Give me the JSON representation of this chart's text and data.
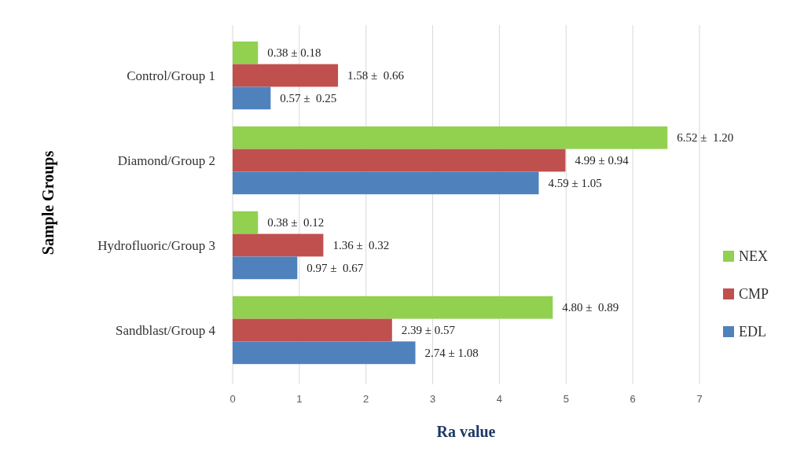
{
  "chart_data": {
    "type": "bar",
    "orientation": "horizontal",
    "xlabel": "Ra value",
    "ylabel": "Sample Groups",
    "categories": [
      "Control/Group 1",
      "Diamond/Group 2",
      "Hydrofluoric/Group 3",
      "Sandblast/Group 4"
    ],
    "series": [
      {
        "name": "NEX",
        "color": "#92d050",
        "values": [
          0.38,
          6.52,
          0.38,
          4.8
        ],
        "value_labels": [
          "0.38 ± 0.18",
          "6.52 ±  1.20",
          "0.38 ±  0.12",
          "4.80 ±  0.89"
        ]
      },
      {
        "name": "CMP",
        "color": "#c0504d",
        "values": [
          1.58,
          4.99,
          1.36,
          2.39
        ],
        "value_labels": [
          "1.58 ±  0.66",
          "4.99 ± 0.94",
          "1.36 ±  0.32",
          "2.39 ± 0.57"
        ]
      },
      {
        "name": "EDL",
        "color": "#4f81bd",
        "values": [
          0.57,
          4.59,
          0.97,
          2.74
        ],
        "value_labels": [
          "0.57 ±  0.25",
          "4.59 ± 1.05",
          "0.97 ±  0.67",
          "2.74 ± 1.08"
        ]
      }
    ],
    "xlim": [
      0,
      7
    ],
    "xticks": [
      0,
      1,
      2,
      3,
      4,
      5,
      6,
      7
    ],
    "grid": "x",
    "legend": "right"
  }
}
